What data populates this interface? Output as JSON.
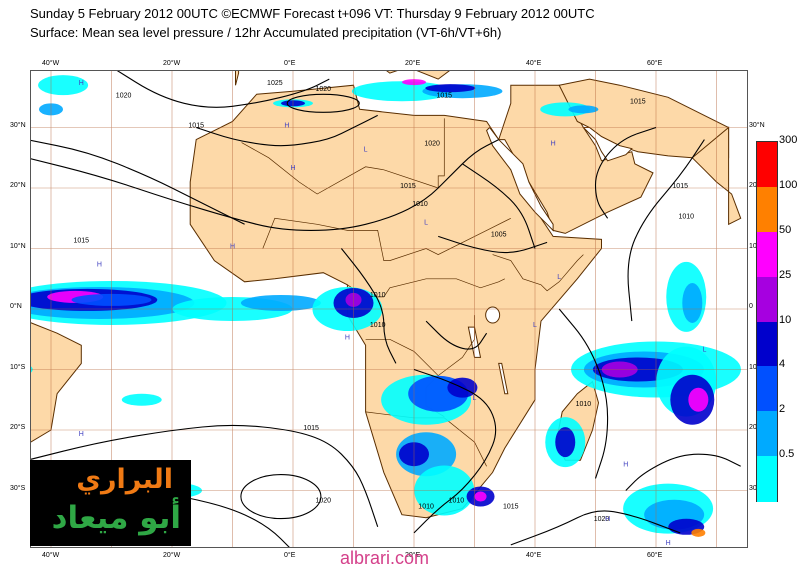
{
  "header": {
    "line1": "Sunday 5 February 2012 00UTC ©ECMWF Forecast t+096 VT: Thursday 9 February 2012 00UTC",
    "line2": "Surface: Mean sea level pressure / 12hr Accumulated precipitation (VT-6h/VT+6h)"
  },
  "map": {
    "lon_ticks": [
      {
        "label": "40°W",
        "lon": -40
      },
      {
        "label": "20°W",
        "lon": -20
      },
      {
        "label": "0°E",
        "lon": 0
      },
      {
        "label": "20°E",
        "lon": 20
      },
      {
        "label": "40°E",
        "lon": 40
      },
      {
        "label": "60°E",
        "lon": 60
      }
    ],
    "lat_ticks_left": [
      {
        "label": "30°N",
        "lat": 30
      },
      {
        "label": "20°N",
        "lat": 20
      },
      {
        "label": "10°N",
        "lat": 10
      },
      {
        "label": "0°N",
        "lat": 0
      },
      {
        "label": "10°S",
        "lat": -10
      },
      {
        "label": "20°S",
        "lat": -20
      },
      {
        "label": "30°S",
        "lat": -30
      }
    ],
    "lat_ticks_right": [
      {
        "label": "30°N",
        "lat": 30
      },
      {
        "label": "20",
        "lat": 20
      },
      {
        "label": "10",
        "lat": 10
      },
      {
        "label": "0",
        "lat": 0
      },
      {
        "label": "10",
        "lat": -10
      },
      {
        "label": "20",
        "lat": -20
      },
      {
        "label": "30",
        "lat": -30
      }
    ],
    "isobar_labels": [
      {
        "text": "1025",
        "lon": -3,
        "lat": 37
      },
      {
        "text": "1020",
        "lon": 5,
        "lat": 36
      },
      {
        "text": "1015",
        "lon": 25,
        "lat": 35
      },
      {
        "text": "1015",
        "lon": 57,
        "lat": 34
      },
      {
        "text": "1020",
        "lon": -28,
        "lat": 35
      },
      {
        "text": "1015",
        "lon": -16,
        "lat": 30
      },
      {
        "text": "1020",
        "lon": 23,
        "lat": 27
      },
      {
        "text": "1015",
        "lon": 19,
        "lat": 20
      },
      {
        "text": "1010",
        "lon": 21,
        "lat": 17
      },
      {
        "text": "1015",
        "lon": -35,
        "lat": 11
      },
      {
        "text": "1005",
        "lon": 34,
        "lat": 12
      },
      {
        "text": "1010",
        "lon": 14,
        "lat": 2
      },
      {
        "text": "1010",
        "lon": 14,
        "lat": -3
      },
      {
        "text": "1010",
        "lon": 65,
        "lat": 15
      },
      {
        "text": "1015",
        "lon": 64,
        "lat": 20
      },
      {
        "text": "1010",
        "lon": 48,
        "lat": -16
      },
      {
        "text": "1015",
        "lon": 3,
        "lat": -20
      },
      {
        "text": "1020",
        "lon": 5,
        "lat": -32
      },
      {
        "text": "1010",
        "lon": 27,
        "lat": -32
      },
      {
        "text": "1010",
        "lon": 22,
        "lat": -33
      },
      {
        "text": "1015",
        "lon": 36,
        "lat": -33
      },
      {
        "text": "1020",
        "lon": 51,
        "lat": -35
      }
    ],
    "pressure_marks": [
      {
        "text": "H",
        "lon": -35,
        "lat": 37
      },
      {
        "text": "H",
        "lon": -1,
        "lat": 30
      },
      {
        "text": "H",
        "lon": 43,
        "lat": 27
      },
      {
        "text": "H",
        "lon": 0,
        "lat": 23
      },
      {
        "text": "L",
        "lon": 12,
        "lat": 26
      },
      {
        "text": "H",
        "lon": -10,
        "lat": 10
      },
      {
        "text": "L",
        "lon": 22,
        "lat": 14
      },
      {
        "text": "L",
        "lon": 44,
        "lat": 5
      },
      {
        "text": "H",
        "lon": -32,
        "lat": 7
      },
      {
        "text": "H",
        "lon": 9,
        "lat": -5
      },
      {
        "text": "H",
        "lon": -35,
        "lat": -21
      },
      {
        "text": "L",
        "lon": 40,
        "lat": -3
      },
      {
        "text": "L",
        "lon": 30,
        "lat": -15
      },
      {
        "text": "H",
        "lon": 55,
        "lat": -26
      },
      {
        "text": "L",
        "lon": 68,
        "lat": -7
      },
      {
        "text": "H",
        "lon": 52,
        "lat": -35
      },
      {
        "text": "H",
        "lon": 62,
        "lat": -39
      }
    ]
  },
  "legend": {
    "levels": [
      {
        "label": "300",
        "color": "#ff0000"
      },
      {
        "label": "100",
        "color": "#ff8000"
      },
      {
        "label": "50",
        "color": "#ff00ff"
      },
      {
        "label": "25",
        "color": "#a600e0"
      },
      {
        "label": "10",
        "color": "#0000cc"
      },
      {
        "label": "4",
        "color": "#0050ff"
      },
      {
        "label": "2",
        "color": "#00aaff"
      },
      {
        "label": "0.5",
        "color": "#00ffff"
      }
    ]
  },
  "colors": {
    "land": "#fdd9a8",
    "ocean": "#ffffff",
    "coastline": "#5a2e00",
    "isobar": "#000000",
    "grid": "#b4643a"
  },
  "logo": {
    "line1": "البراري",
    "line2": "أبو ميعاد"
  },
  "site": "albrari.com"
}
